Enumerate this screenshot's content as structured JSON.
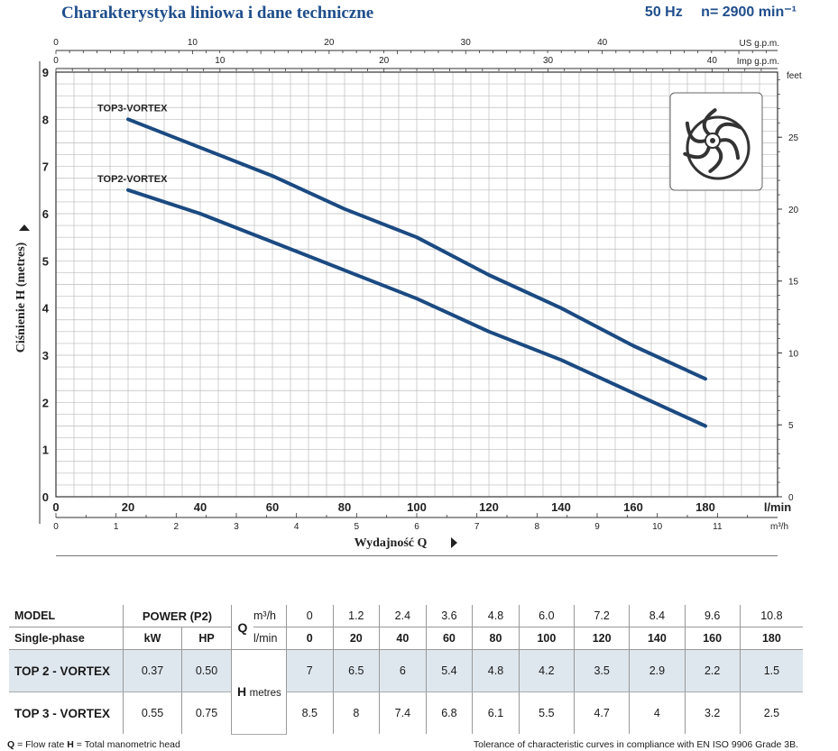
{
  "header": {
    "title": "Charakterystyka liniowa i dane techniczne",
    "frequency": "50 Hz",
    "speed": "n= 2900 min⁻¹"
  },
  "chart_data": {
    "type": "line",
    "y_label": "Ciśnienie  H  (metres)",
    "x_label": "Wydajność  Q",
    "xlim": [
      0,
      200
    ],
    "ylim": [
      0,
      9
    ],
    "grid": true,
    "x_ticks_lmin": [
      "0",
      "20",
      "40",
      "60",
      "80",
      "100",
      "120",
      "140",
      "160",
      "180"
    ],
    "x_unit_lmin": "l/min",
    "x_ticks_m3h": [
      "0",
      "1",
      "2",
      "3",
      "4",
      "5",
      "6",
      "7",
      "8",
      "9",
      "10",
      "11"
    ],
    "x_unit_m3h": "m³/h",
    "top_ticks_us": [
      "0",
      "10",
      "20",
      "30",
      "40"
    ],
    "top_unit_us": "US g.p.m.",
    "top_ticks_imp": [
      "0",
      "10",
      "20",
      "30",
      "40"
    ],
    "top_unit_imp": "Imp g.p.m.",
    "y_ticks": [
      "0",
      "1",
      "2",
      "3",
      "4",
      "5",
      "6",
      "7",
      "8",
      "9"
    ],
    "right_ticks_feet": [
      "0",
      "5",
      "10",
      "15",
      "20",
      "25"
    ],
    "right_unit": "feet",
    "series": [
      {
        "name": "TOP2-VORTEX",
        "x": [
          20,
          40,
          60,
          80,
          100,
          120,
          140,
          160,
          180
        ],
        "y": [
          6.5,
          6.0,
          5.4,
          4.8,
          4.2,
          3.5,
          2.9,
          2.2,
          1.5
        ]
      },
      {
        "name": "TOP3-VORTEX",
        "x": [
          20,
          40,
          60,
          80,
          100,
          120,
          140,
          160,
          180
        ],
        "y": [
          8.0,
          7.4,
          6.8,
          6.1,
          5.5,
          4.7,
          4.0,
          3.2,
          2.5
        ]
      }
    ],
    "line_color": "#1b4a82"
  },
  "table": {
    "model_label": "MODEL",
    "phase_label": "Single-phase",
    "power_label": "POWER (P2)",
    "kw_label": "kW",
    "hp_label": "HP",
    "q_label": "Q",
    "m3h_label": "m³/h",
    "lmin_label": "l/min",
    "h_label": "H",
    "h_unit": "metres",
    "m3h_values": [
      "0",
      "1.2",
      "2.4",
      "3.6",
      "4.8",
      "6.0",
      "7.2",
      "8.4",
      "9.6",
      "10.8"
    ],
    "lmin_values": [
      "0",
      "20",
      "40",
      "60",
      "80",
      "100",
      "120",
      "140",
      "160",
      "180"
    ],
    "rows": [
      {
        "model": "TOP 2 - VORTEX",
        "kw": "0.37",
        "hp": "0.50",
        "h": [
          "7",
          "6.5",
          "6",
          "5.4",
          "4.8",
          "4.2",
          "3.5",
          "2.9",
          "2.2",
          "1.5"
        ]
      },
      {
        "model": "TOP 3 - VORTEX",
        "kw": "0.55",
        "hp": "0.75",
        "h": [
          "8.5",
          "8",
          "7.4",
          "6.8",
          "6.1",
          "5.5",
          "4.7",
          "4",
          "3.2",
          "2.5"
        ]
      }
    ]
  },
  "footer": {
    "left_q": "Q",
    "left_q_text": " = Flow rate ",
    "left_h": "H",
    "left_h_text": " = Total manometric head",
    "right": "Tolerance of characteristic curves in compliance with EN ISO 9906 Grade 3B."
  }
}
